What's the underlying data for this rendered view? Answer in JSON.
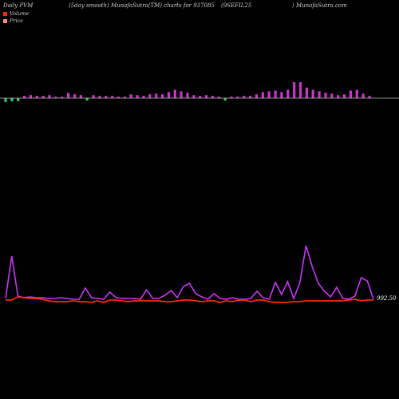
{
  "header": {
    "left": "Daily PVM",
    "mid": "(5day smooth) MunafaSutra(TM) charts for 937085",
    "right": "(9SEFIL25",
    "site": ") MunafaSutra.com"
  },
  "colors": {
    "background": "#000000",
    "volume_up": "#cc33cc",
    "volume_down": "#33cc66",
    "price_line": "#ff2a00",
    "smooth_line": "#cc33ff",
    "baseline": "#bbbbbb"
  },
  "chart_data": {
    "type": "line",
    "legend": [
      {
        "name": "Volume",
        "color": "#ff2a00"
      },
      {
        "name": "Price",
        "color": "#ff8c66"
      }
    ],
    "price_label": "992.50",
    "volume_bars": [
      {
        "value": 5,
        "dir": "down"
      },
      {
        "value": 4,
        "dir": "down"
      },
      {
        "value": 4,
        "dir": "down"
      },
      {
        "value": 3,
        "dir": "up"
      },
      {
        "value": 4,
        "dir": "up"
      },
      {
        "value": 3,
        "dir": "up"
      },
      {
        "value": 3,
        "dir": "up"
      },
      {
        "value": 4,
        "dir": "up"
      },
      {
        "value": 2,
        "dir": "up"
      },
      {
        "value": 2,
        "dir": "up"
      },
      {
        "value": 7,
        "dir": "up"
      },
      {
        "value": 5,
        "dir": "up"
      },
      {
        "value": 4,
        "dir": "up"
      },
      {
        "value": 3,
        "dir": "down"
      },
      {
        "value": 4,
        "dir": "up"
      },
      {
        "value": 3,
        "dir": "up"
      },
      {
        "value": 3,
        "dir": "up"
      },
      {
        "value": 3,
        "dir": "up"
      },
      {
        "value": 2,
        "dir": "up"
      },
      {
        "value": 2,
        "dir": "up"
      },
      {
        "value": 5,
        "dir": "up"
      },
      {
        "value": 4,
        "dir": "up"
      },
      {
        "value": 3,
        "dir": "up"
      },
      {
        "value": 5,
        "dir": "up"
      },
      {
        "value": 6,
        "dir": "up"
      },
      {
        "value": 5,
        "dir": "up"
      },
      {
        "value": 8,
        "dir": "up"
      },
      {
        "value": 11,
        "dir": "up"
      },
      {
        "value": 9,
        "dir": "up"
      },
      {
        "value": 7,
        "dir": "up"
      },
      {
        "value": 4,
        "dir": "up"
      },
      {
        "value": 3,
        "dir": "up"
      },
      {
        "value": 4,
        "dir": "up"
      },
      {
        "value": 3,
        "dir": "up"
      },
      {
        "value": 2,
        "dir": "up"
      },
      {
        "value": 3,
        "dir": "down"
      },
      {
        "value": 2,
        "dir": "up"
      },
      {
        "value": 2,
        "dir": "up"
      },
      {
        "value": 3,
        "dir": "up"
      },
      {
        "value": 3,
        "dir": "up"
      },
      {
        "value": 5,
        "dir": "up"
      },
      {
        "value": 8,
        "dir": "up"
      },
      {
        "value": 9,
        "dir": "up"
      },
      {
        "value": 10,
        "dir": "up"
      },
      {
        "value": 8,
        "dir": "up"
      },
      {
        "value": 11,
        "dir": "up"
      },
      {
        "value": 21,
        "dir": "up"
      },
      {
        "value": 21,
        "dir": "up"
      },
      {
        "value": 14,
        "dir": "up"
      },
      {
        "value": 11,
        "dir": "up"
      },
      {
        "value": 9,
        "dir": "up"
      },
      {
        "value": 7,
        "dir": "up"
      },
      {
        "value": 6,
        "dir": "up"
      },
      {
        "value": 4,
        "dir": "up"
      },
      {
        "value": 5,
        "dir": "up"
      },
      {
        "value": 10,
        "dir": "up"
      },
      {
        "value": 11,
        "dir": "up"
      },
      {
        "value": 6,
        "dir": "up"
      },
      {
        "value": 3,
        "dir": "up"
      }
    ],
    "smooth_series": [
      2,
      55,
      5,
      3,
      4,
      3,
      3,
      2,
      2,
      3,
      2,
      1,
      1,
      15,
      3,
      2,
      1,
      10,
      3,
      2,
      2,
      2,
      1,
      13,
      2,
      2,
      6,
      12,
      3,
      17,
      21,
      8,
      4,
      1,
      8,
      2,
      1,
      3,
      1,
      1,
      2,
      11,
      3,
      1,
      22,
      7,
      23,
      2,
      22,
      68,
      42,
      21,
      11,
      4,
      16,
      2,
      1,
      5,
      28,
      24,
      1
    ],
    "price_series": [
      1,
      1,
      5,
      4,
      3,
      3,
      2,
      0,
      -1,
      -1,
      -1,
      0,
      -1,
      -1,
      -2,
      0,
      -2,
      1,
      1,
      0,
      -1,
      0,
      0,
      0,
      0,
      0,
      -1,
      -1,
      0,
      1,
      1,
      0,
      -1,
      0,
      0,
      -2,
      0,
      -1,
      1,
      1,
      -1,
      1,
      1,
      -1,
      -2,
      -2,
      -2,
      -1,
      -1,
      0,
      0,
      0,
      0,
      0,
      0,
      0,
      1,
      2,
      0,
      1,
      1
    ]
  }
}
